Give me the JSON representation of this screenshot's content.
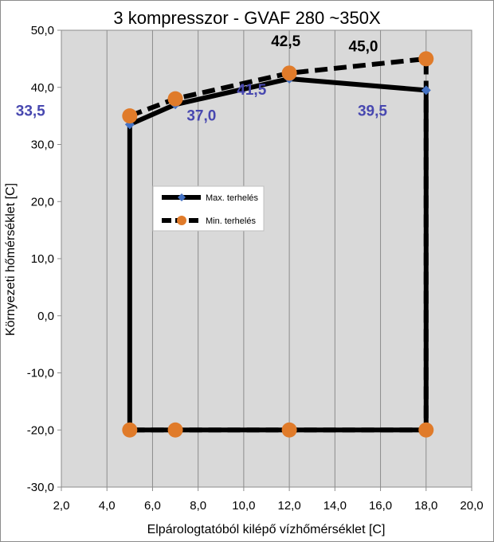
{
  "chart_data": {
    "type": "line",
    "title": "3 kompresszor - GVAF 280 ~350X",
    "xlabel": "Elpárologtatóból kilépő vízhőmérséklet [C]",
    "ylabel": "Környezeti hőmérséklet [C]",
    "xlim": [
      2,
      20
    ],
    "ylim": [
      -30,
      50
    ],
    "x_ticks": [
      "2,0",
      "4,0",
      "6,0",
      "8,0",
      "10,0",
      "12,0",
      "14,0",
      "16,0",
      "18,0",
      "20,0"
    ],
    "y_ticks": [
      "50,0",
      "40,0",
      "30,0",
      "20,0",
      "10,0",
      "0,0",
      "-10,0",
      "-20,0",
      "-30,0"
    ],
    "grid": "vertical",
    "legend_position": "center-left",
    "series": [
      {
        "name": "Max. terhelés",
        "color": "#000000",
        "marker_color": "#4472c4",
        "marker": "diamond",
        "line_style": "solid",
        "points": [
          {
            "x": 5,
            "y": -20
          },
          {
            "x": 5,
            "y": 33.5
          },
          {
            "x": 7,
            "y": 37.0
          },
          {
            "x": 12,
            "y": 41.5
          },
          {
            "x": 18,
            "y": 39.5
          },
          {
            "x": 18,
            "y": -20
          },
          {
            "x": 5,
            "y": -20
          }
        ]
      },
      {
        "name": "Min. terhelés",
        "color": "#000000",
        "marker_color": "#e07b2a",
        "marker": "circle",
        "line_style": "dashed",
        "points": [
          {
            "x": 5,
            "y": 35
          },
          {
            "x": 7,
            "y": 38
          },
          {
            "x": 12,
            "y": 42.5
          },
          {
            "x": 18,
            "y": 45.0
          },
          {
            "x": 18,
            "y": -20
          },
          {
            "x": 12,
            "y": -20
          },
          {
            "x": 7,
            "y": -20
          },
          {
            "x": 5,
            "y": -20
          }
        ]
      }
    ],
    "data_labels": [
      {
        "text": "33,5",
        "x": 5,
        "y": 33.5,
        "color": "#4848b0",
        "dx": -5,
        "dy": 1.5
      },
      {
        "text": "37,0",
        "x": 7,
        "y": 37.0,
        "color": "#4848b0",
        "dx": 0.5,
        "dy": -2.8
      },
      {
        "text": "41,5",
        "x": 12,
        "y": 41.5,
        "color": "#4848b0",
        "dx": -2.3,
        "dy": -2.8
      },
      {
        "text": "39,5",
        "x": 18,
        "y": 39.5,
        "color": "#4848b0",
        "dx": -3.0,
        "dy": -4.5
      },
      {
        "text": "42,5",
        "x": 12,
        "y": 42.5,
        "color": "#000000",
        "dx": -0.8,
        "dy": 4.7
      },
      {
        "text": "45,0",
        "x": 18,
        "y": 45.0,
        "color": "#000000",
        "dx": -3.4,
        "dy": 1.3
      }
    ]
  }
}
